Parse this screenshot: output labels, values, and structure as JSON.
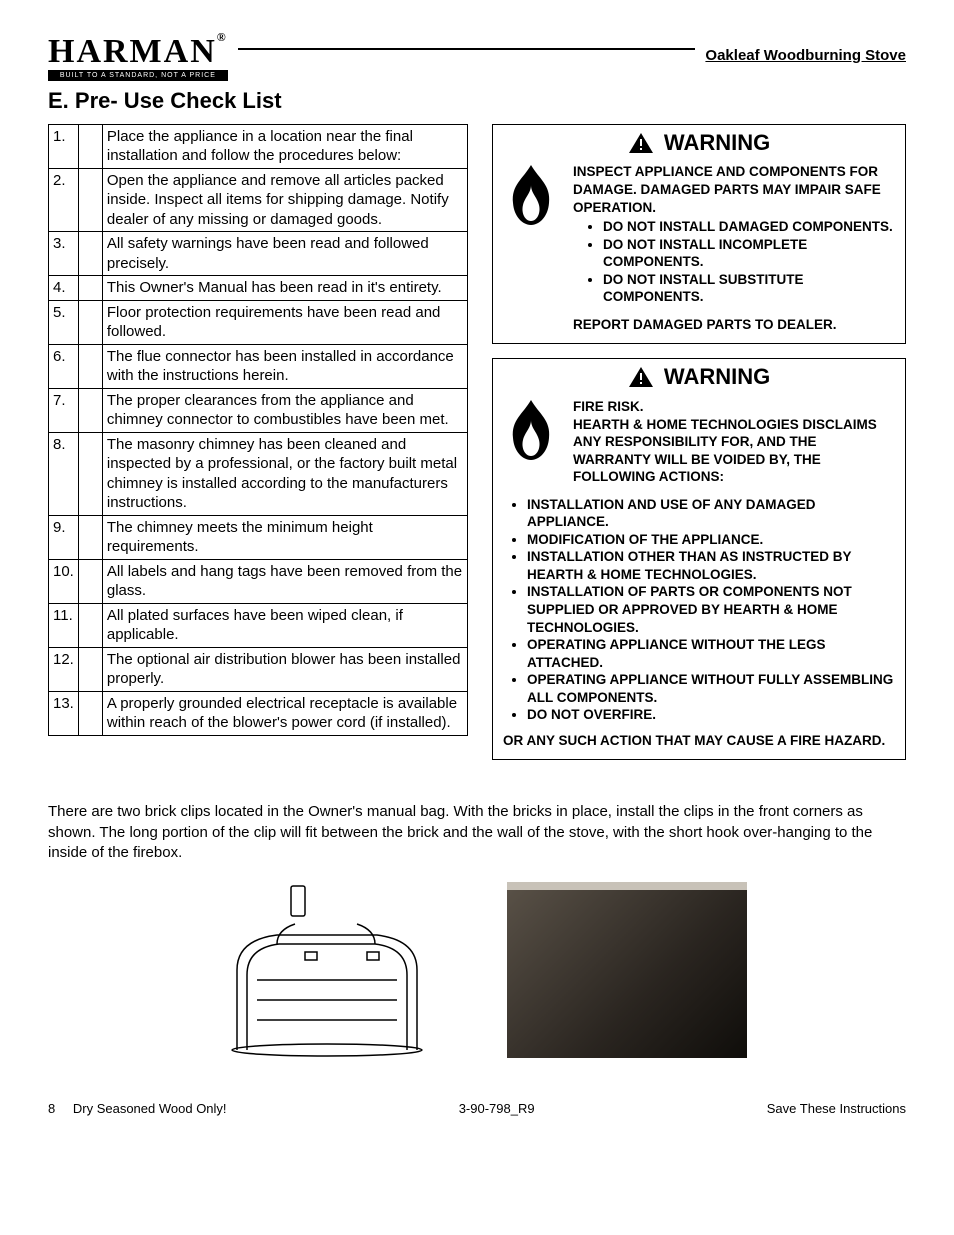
{
  "header": {
    "brand": "HARMAN",
    "brand_reg": "®",
    "tagline": "BUILT TO A STANDARD, NOT A PRICE",
    "product": "Oakleaf Woodburning Stove"
  },
  "title": "E. Pre- Use Check List",
  "checklist": [
    {
      "n": "1.",
      "t": "Place the appliance in a location near the final installation and follow the procedures below:"
    },
    {
      "n": "2.",
      "t": "Open the appliance and remove all articles packed inside. Inspect all items for shipping damage. Notify dealer of any missing or damaged goods."
    },
    {
      "n": "3.",
      "t": "All safety warnings have been read and followed precisely."
    },
    {
      "n": "4.",
      "t": "This Owner's Manual has been read in it's entirety."
    },
    {
      "n": "5.",
      "t": "Floor protection requirements have been read and followed."
    },
    {
      "n": "6.",
      "t": "The flue connector has been installed in accordance with the instructions herein."
    },
    {
      "n": "7.",
      "t": "The proper clearances from the appliance and chimney connector to combustibles have been met."
    },
    {
      "n": "8.",
      "t": "The masonry chimney has been cleaned and inspected by a professional, or the factory built metal chimney is installed according to the manufacturers instructions."
    },
    {
      "n": "9.",
      "t": "The chimney meets the minimum height requirements."
    },
    {
      "n": "10.",
      "t": "All labels and hang tags have been removed from the glass."
    },
    {
      "n": "11.",
      "t": "All plated surfaces have been wiped clean, if applicable."
    },
    {
      "n": "12.",
      "t": "The optional air distribution blower has been installed properly."
    },
    {
      "n": "13.",
      "t": "A properly grounded electrical receptacle is available within reach of the blower's power cord (if installed)."
    }
  ],
  "warning1": {
    "title": "WARNING",
    "lead": "INSPECT APPLIANCE AND COMPONENTS FOR DAMAGE. DAMAGED PARTS MAY IMPAIR SAFE OPERATION.",
    "bullets": [
      "DO NOT INSTALL DAMAGED COMPONENTS.",
      "DO NOT INSTALL INCOMPLETE COMPONENTS.",
      "DO NOT INSTALL SUBSTITUTE COMPONENTS."
    ],
    "tail": "REPORT DAMAGED PARTS TO DEALER."
  },
  "warning2": {
    "title": "WARNING",
    "lead": "FIRE RISK.",
    "sub": "HEARTH & HOME TECHNOLOGIES DISCLAIMS ANY RESPONSIBILITY FOR, AND THE WARRANTY WILL BE VOIDED BY, THE FOLLOWING ACTIONS:",
    "bullets": [
      "INSTALLATION AND USE OF ANY DAMAGED APPLIANCE.",
      "MODIFICATION OF THE APPLIANCE.",
      "INSTALLATION OTHER THAN AS INSTRUCTED BY HEARTH & HOME TECHNOLOGIES.",
      "INSTALLATION OF PARTS OR COMPONENTS NOT SUPPLIED OR APPROVED BY HEARTH & HOME TECHNOLOGIES.",
      "OPERATING APPLIANCE WITHOUT THE LEGS ATTACHED.",
      "OPERATING APPLIANCE WITHOUT FULLY ASSEMBLING ALL COMPONENTS.",
      "DO NOT OVERFIRE."
    ],
    "tail": "OR ANY SUCH ACTION THAT MAY CAUSE A FIRE HAZARD."
  },
  "note": "There are two brick clips located in the Owner's manual bag. With the bricks in place, install the clips in the front corners as shown. The long portion of the clip will fit between the brick and the wall of the stove, with the short hook over-hanging to the inside of the firebox.",
  "footer": {
    "page": "8",
    "left": "Dry Seasoned Wood Only!",
    "center": "3-90-798_R9",
    "right": "Save These Instructions"
  },
  "colors": {
    "text": "#000000",
    "bg": "#ffffff"
  }
}
